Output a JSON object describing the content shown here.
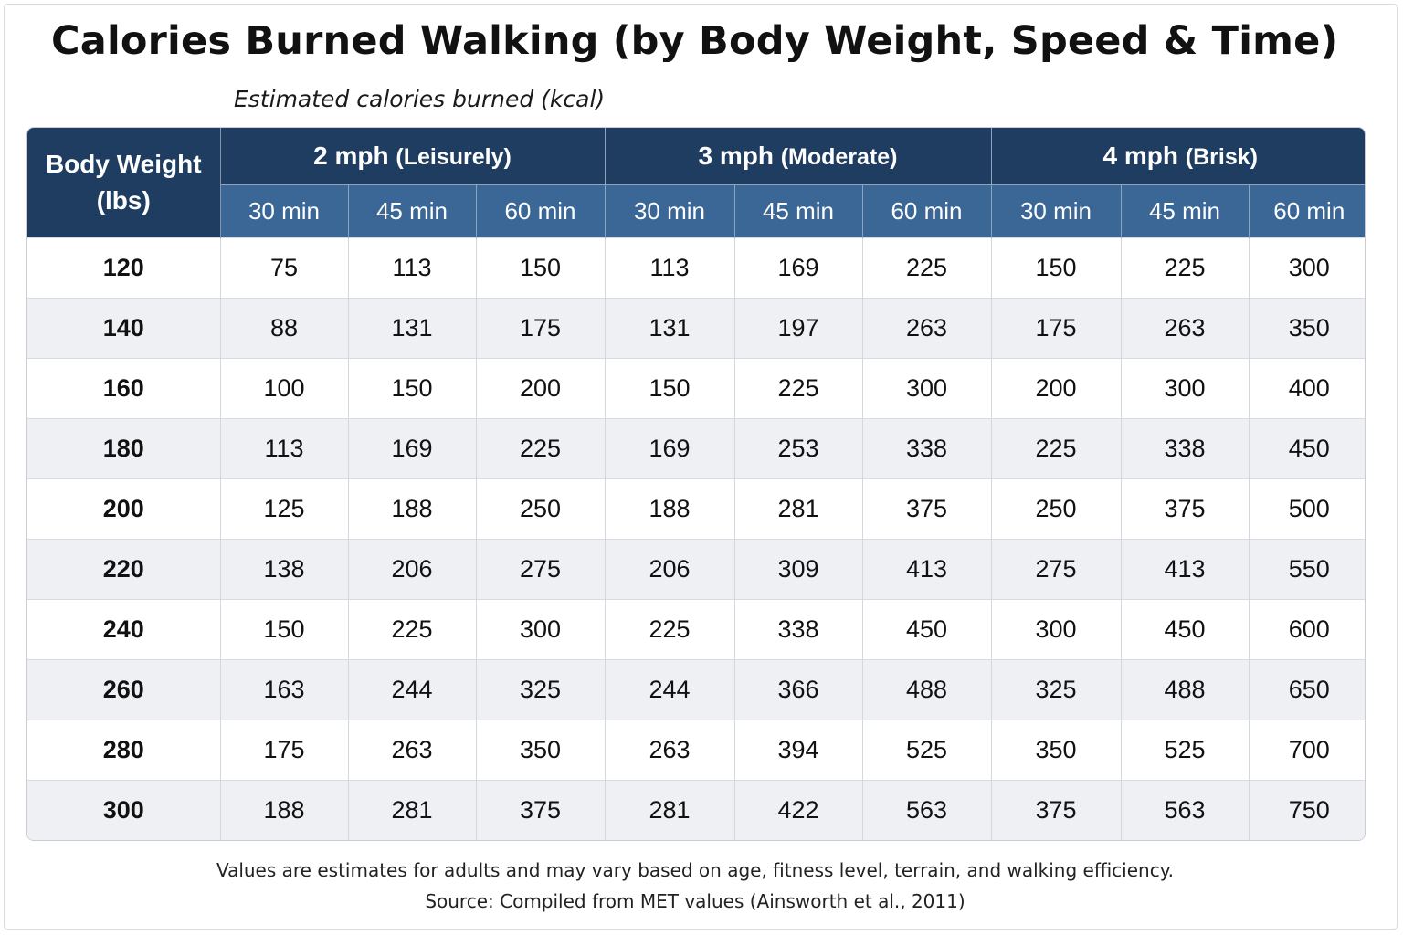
{
  "title": "Calories Burned Walking (by Body Weight, Speed & Time)",
  "subtitle": "Estimated calories burned (kcal)",
  "table": {
    "weight_header_line1": "Body Weight",
    "weight_header_line2": "(lbs)",
    "speeds": [
      {
        "speed": "2 mph",
        "pace": "(Leisurely)"
      },
      {
        "speed": "3 mph",
        "pace": "(Moderate)"
      },
      {
        "speed": "4 mph",
        "pace": "(Brisk)"
      }
    ],
    "durations": [
      "30 min",
      "45 min",
      "60 min"
    ],
    "rows": [
      {
        "weight": "120",
        "values": [
          "75",
          "113",
          "150",
          "113",
          "169",
          "225",
          "150",
          "225",
          "300"
        ]
      },
      {
        "weight": "140",
        "values": [
          "88",
          "131",
          "175",
          "131",
          "197",
          "263",
          "175",
          "263",
          "350"
        ]
      },
      {
        "weight": "160",
        "values": [
          "100",
          "150",
          "200",
          "150",
          "225",
          "300",
          "200",
          "300",
          "400"
        ]
      },
      {
        "weight": "180",
        "values": [
          "113",
          "169",
          "225",
          "169",
          "253",
          "338",
          "225",
          "338",
          "450"
        ]
      },
      {
        "weight": "200",
        "values": [
          "125",
          "188",
          "250",
          "188",
          "281",
          "375",
          "250",
          "375",
          "500"
        ]
      },
      {
        "weight": "220",
        "values": [
          "138",
          "206",
          "275",
          "206",
          "309",
          "413",
          "275",
          "413",
          "550"
        ]
      },
      {
        "weight": "240",
        "values": [
          "150",
          "225",
          "300",
          "225",
          "338",
          "450",
          "300",
          "450",
          "600"
        ]
      },
      {
        "weight": "260",
        "values": [
          "163",
          "244",
          "325",
          "244",
          "366",
          "488",
          "325",
          "488",
          "650"
        ]
      },
      {
        "weight": "280",
        "values": [
          "175",
          "263",
          "350",
          "263",
          "394",
          "525",
          "350",
          "525",
          "700"
        ]
      },
      {
        "weight": "300",
        "values": [
          "188",
          "281",
          "375",
          "281",
          "422",
          "563",
          "375",
          "563",
          "750"
        ]
      }
    ]
  },
  "footer": {
    "disclaimer": "Values are estimates for adults and may vary based on age, fitness level, terrain, and walking efficiency.",
    "source": "Source: Compiled from MET values (Ainsworth et al., 2011)"
  },
  "colors": {
    "header_dark": "#1e3d60",
    "header_light": "#3b6796",
    "row_alt": "#eef0f4"
  }
}
